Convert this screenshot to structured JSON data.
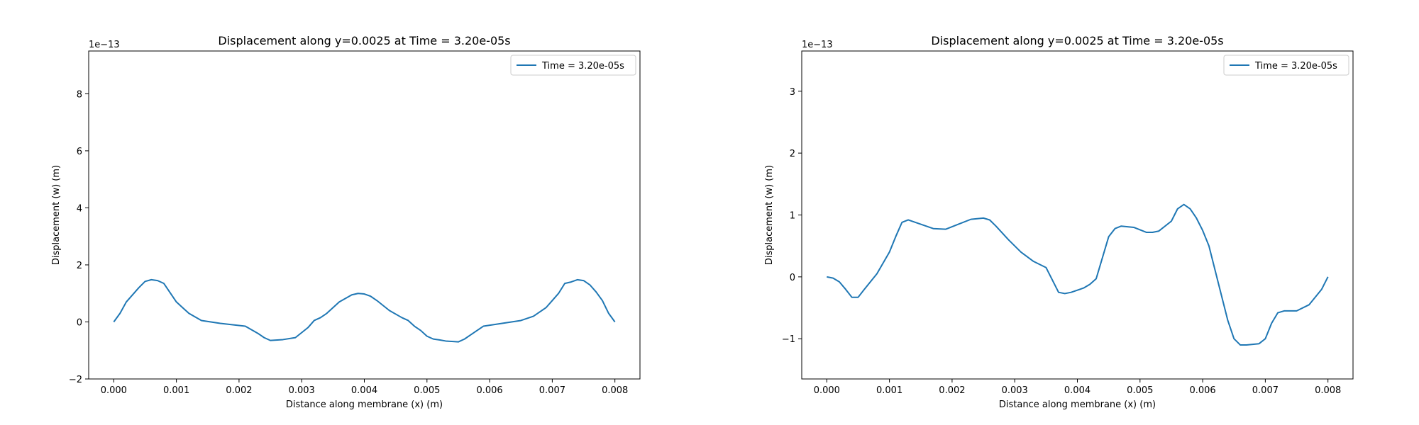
{
  "chart_data": [
    {
      "type": "line",
      "title": "Displacement along y=0.0025 at Time = 3.20e-05s",
      "xlabel": "Distance along membrane (x) (m)",
      "ylabel": "Displacement (w) (m)",
      "y_offset_text": "1e−13",
      "y_scale": 1e-13,
      "xlim": [
        -0.0004,
        0.0084
      ],
      "ylim": [
        -2.0,
        9.5
      ],
      "x_ticks": [
        0.0,
        0.001,
        0.002,
        0.003,
        0.004,
        0.005,
        0.006,
        0.007,
        0.008
      ],
      "x_tick_labels": [
        "0.000",
        "0.001",
        "0.002",
        "0.003",
        "0.004",
        "0.005",
        "0.006",
        "0.007",
        "0.008"
      ],
      "y_ticks": [
        -2,
        0,
        2,
        4,
        6,
        8
      ],
      "y_tick_labels": [
        "−2",
        "0",
        "2",
        "4",
        "6",
        "8"
      ],
      "legend_position": "top-right",
      "grid": false,
      "color": "#1f77b4",
      "series": [
        {
          "name": "Time = 3.20e-05s",
          "x": [
            0.0,
            0.0001,
            0.0002,
            0.0004,
            0.0005,
            0.0006,
            0.0007,
            0.0008,
            0.001,
            0.0012,
            0.0014,
            0.0017,
            0.0021,
            0.0023,
            0.0024,
            0.0025,
            0.0027,
            0.0029,
            0.0031,
            0.0032,
            0.0033,
            0.0034,
            0.0036,
            0.0038,
            0.0039,
            0.004,
            0.0041,
            0.0042,
            0.0044,
            0.0046,
            0.0047,
            0.0048,
            0.0049,
            0.005,
            0.0051,
            0.0052,
            0.0053,
            0.0055,
            0.0056,
            0.0057,
            0.0059,
            0.0062,
            0.0065,
            0.0067,
            0.0069,
            0.007,
            0.0071,
            0.0072,
            0.0073,
            0.0074,
            0.0075,
            0.0076,
            0.0077,
            0.0078,
            0.0079,
            0.008
          ],
          "y": [
            0.0,
            0.3,
            0.7,
            1.2,
            1.42,
            1.48,
            1.45,
            1.35,
            0.7,
            0.3,
            0.05,
            -0.05,
            -0.15,
            -0.4,
            -0.55,
            -0.65,
            -0.62,
            -0.55,
            -0.2,
            0.05,
            0.15,
            0.3,
            0.7,
            0.95,
            1.0,
            0.98,
            0.9,
            0.75,
            0.4,
            0.15,
            0.05,
            -0.15,
            -0.3,
            -0.5,
            -0.6,
            -0.63,
            -0.67,
            -0.7,
            -0.6,
            -0.45,
            -0.15,
            -0.05,
            0.05,
            0.2,
            0.5,
            0.75,
            1.0,
            1.35,
            1.4,
            1.48,
            1.45,
            1.3,
            1.05,
            0.75,
            0.3,
            0.0
          ]
        }
      ]
    },
    {
      "type": "line",
      "title": "Displacement along y=0.0025 at Time = 3.20e-05s",
      "xlabel": "Distance along membrane (x) (m)",
      "ylabel": "Displacement (w) (m)",
      "y_offset_text": "1e−13",
      "y_scale": 1e-13,
      "xlim": [
        -0.0004,
        0.0084
      ],
      "ylim": [
        -1.65,
        3.65
      ],
      "x_ticks": [
        0.0,
        0.001,
        0.002,
        0.003,
        0.004,
        0.005,
        0.006,
        0.007,
        0.008
      ],
      "x_tick_labels": [
        "0.000",
        "0.001",
        "0.002",
        "0.003",
        "0.004",
        "0.005",
        "0.006",
        "0.007",
        "0.008"
      ],
      "y_ticks": [
        -1,
        0,
        1,
        2,
        3
      ],
      "y_tick_labels": [
        "−1",
        "0",
        "1",
        "2",
        "3"
      ],
      "legend_position": "top-right",
      "grid": false,
      "color": "#1f77b4",
      "series": [
        {
          "name": "Time = 3.20e-05s",
          "x": [
            0.0,
            0.0001,
            0.0002,
            0.0003,
            0.0004,
            0.0005,
            0.0006,
            0.0008,
            0.001,
            0.0011,
            0.0012,
            0.0013,
            0.0015,
            0.0017,
            0.0019,
            0.0021,
            0.0023,
            0.0025,
            0.0026,
            0.0027,
            0.0029,
            0.0031,
            0.0033,
            0.0035,
            0.0036,
            0.0037,
            0.0038,
            0.0039,
            0.0041,
            0.0042,
            0.0043,
            0.0045,
            0.0046,
            0.0047,
            0.0049,
            0.0051,
            0.0052,
            0.0053,
            0.0055,
            0.0056,
            0.0057,
            0.0058,
            0.0059,
            0.006,
            0.0061,
            0.0062,
            0.0063,
            0.0064,
            0.0065,
            0.0066,
            0.0067,
            0.0069,
            0.007,
            0.0071,
            0.0072,
            0.0073,
            0.0075,
            0.0077,
            0.0079,
            0.008
          ],
          "y": [
            0.0,
            -0.02,
            -0.08,
            -0.2,
            -0.33,
            -0.33,
            -0.2,
            0.05,
            0.4,
            0.65,
            0.88,
            0.92,
            0.85,
            0.78,
            0.77,
            0.85,
            0.93,
            0.95,
            0.92,
            0.82,
            0.6,
            0.4,
            0.25,
            0.15,
            -0.05,
            -0.25,
            -0.27,
            -0.25,
            -0.18,
            -0.12,
            -0.03,
            0.65,
            0.78,
            0.82,
            0.8,
            0.72,
            0.72,
            0.74,
            0.9,
            1.1,
            1.17,
            1.1,
            0.95,
            0.75,
            0.5,
            0.1,
            -0.3,
            -0.7,
            -1.0,
            -1.1,
            -1.1,
            -1.08,
            -1.0,
            -0.75,
            -0.58,
            -0.55,
            -0.55,
            -0.45,
            -0.2,
            0.0
          ]
        }
      ]
    }
  ]
}
